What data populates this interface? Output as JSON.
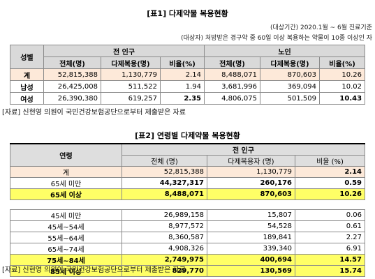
{
  "table1": {
    "title": "[표1] 다제약물 복용현황",
    "meta_period": "(대상기간) 2020.1월 ~ 6월 진료기준",
    "meta_target": "(대상자) 처방받은 경구약 중 60일 이상 복용하는 약물이 10종 이상인 자",
    "header": {
      "gender": "성별",
      "all": "전 인구",
      "elderly": "노인",
      "total_people": "전체(명)",
      "poly_people": "다제복용(명)",
      "ratio": "비율(%)"
    },
    "rows": [
      {
        "label": "계",
        "all_total": "52,815,388",
        "all_poly": "1,130,779",
        "all_ratio": "2.14",
        "old_total": "8,488,071",
        "old_poly": "870,603",
        "old_ratio": "10.26"
      },
      {
        "label": "남성",
        "all_total": "26,425,008",
        "all_poly": "511,522",
        "all_ratio": "1.94",
        "old_total": "3,681,996",
        "old_poly": "369,094",
        "old_ratio": "10.02"
      },
      {
        "label": "여성",
        "all_total": "26,390,380",
        "all_poly": "619,257",
        "all_ratio": "2.35",
        "old_total": "4,806,075",
        "old_poly": "501,509",
        "old_ratio": "10.43"
      }
    ],
    "source": "[자료] 신현영 의원이 국민건강보험공단으로부터 제출받은 자료"
  },
  "table2": {
    "title": "[표2] 연령별 다제약물 복용현황",
    "header": {
      "age": "연령",
      "all": "전 인구",
      "total_people": "전체 (명)",
      "poly_people": "다제복용자 (명)",
      "ratio": "비율 (%)"
    },
    "rows_top": [
      {
        "label": "계",
        "total": "52,815,388",
        "poly": "1,130,779",
        "ratio": "2.14"
      },
      {
        "label": "65세 미만",
        "total": "44,327,317",
        "poly": "260,176",
        "ratio": "0.59"
      },
      {
        "label": "65세 이상",
        "total": "8,488,071",
        "poly": "870,603",
        "ratio": "10.26"
      }
    ],
    "rows_bottom": [
      {
        "label": "45세 미만",
        "total": "26,989,158",
        "poly": "15,807",
        "ratio": "0.06"
      },
      {
        "label": "45세~54세",
        "total": "8,977,572",
        "poly": "54,528",
        "ratio": "0.61"
      },
      {
        "label": "55세~64세",
        "total": "8,360,587",
        "poly": "189,841",
        "ratio": "2.27"
      },
      {
        "label": "65세~74세",
        "total": "4,908,326",
        "poly": "339,340",
        "ratio": "6.91"
      },
      {
        "label": "75세~84세",
        "total": "2,749,975",
        "poly": "400,694",
        "ratio": "14.57"
      },
      {
        "label": "85세 이상",
        "total": "829,770",
        "poly": "130,569",
        "ratio": "15.74"
      }
    ],
    "source": "[자료] 신현영 의원이 국민건강보험공단으로부터 제출받은 자료"
  },
  "colors": {
    "header_gray": "#d9d9d9",
    "total_row_pink": "#fde9d9",
    "highlight_yellow": "#ffff66"
  }
}
